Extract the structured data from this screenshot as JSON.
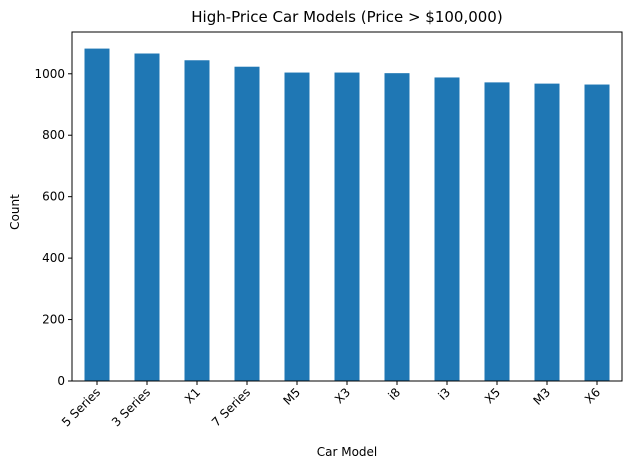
{
  "chart_data": {
    "type": "bar",
    "title": "High-Price Car Models (Price > $100,000)",
    "xlabel": "Car Model",
    "ylabel": "Count",
    "categories": [
      "5 Series",
      "3 Series",
      "X1",
      "7 Series",
      "M5",
      "X3",
      "i8",
      "i3",
      "X5",
      "M3",
      "X6"
    ],
    "values": [
      1082,
      1066,
      1044,
      1023,
      1004,
      1004,
      1002,
      988,
      972,
      968,
      965
    ],
    "ylim": [
      0,
      1136
    ],
    "yticks": [
      0,
      200,
      400,
      600,
      800,
      1000
    ],
    "bar_color": "#1f77b4",
    "grid": false,
    "legend": "none"
  }
}
